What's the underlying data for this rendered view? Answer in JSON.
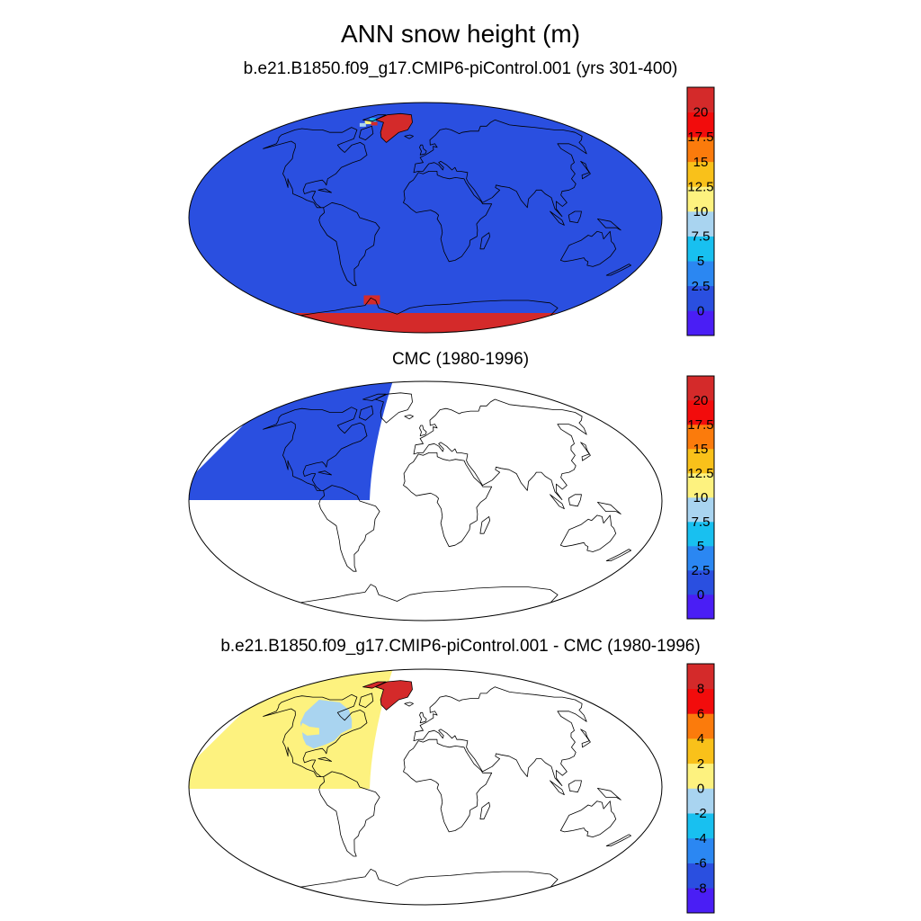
{
  "main_title": "ANN snow height (m)",
  "panels": [
    {
      "title": "b.e21.B1850.f09_g17.CMIP6-piControl.001 (yrs 301-400)",
      "ocean_fill": "#2a4fe0",
      "ice_fill": "#d42a2a",
      "colorbar": {
        "colors": [
          "#4a1ef5",
          "#2a4fe0",
          "#2b87f2",
          "#18c0f0",
          "#a9d4f0",
          "#fdf27f",
          "#f9c11a",
          "#fb7b0c",
          "#f20c0c",
          "#d42a2a"
        ],
        "labels": [
          "0",
          "2.5",
          "5",
          "7.5",
          "10",
          "12.5",
          "15",
          "17.5",
          "20"
        ]
      }
    },
    {
      "title": "CMC (1980-1996)",
      "fill": "#2a4fe0",
      "colorbar": {
        "colors": [
          "#4a1ef5",
          "#2a4fe0",
          "#2b87f2",
          "#18c0f0",
          "#a9d4f0",
          "#fdf27f",
          "#f9c11a",
          "#fb7b0c",
          "#f20c0c",
          "#d42a2a"
        ],
        "labels": [
          "0",
          "2.5",
          "5",
          "7.5",
          "10",
          "12.5",
          "15",
          "17.5",
          "20"
        ]
      }
    },
    {
      "title": "b.e21.B1850.f09_g17.CMIP6-piControl.001 - CMC (1980-1996)",
      "fill": "#fdf27f",
      "land_fill": "#a9d4f0",
      "ice_fill": "#d42a2a",
      "colorbar": {
        "colors": [
          "#4a1ef5",
          "#2a4fe0",
          "#2b87f2",
          "#18c0f0",
          "#a9d4f0",
          "#fdf27f",
          "#f9c11a",
          "#fb7b0c",
          "#f20c0c",
          "#d42a2a"
        ],
        "labels": [
          "-8",
          "-6",
          "-4",
          "-2",
          "0",
          "2",
          "4",
          "6",
          "8"
        ]
      }
    }
  ]
}
